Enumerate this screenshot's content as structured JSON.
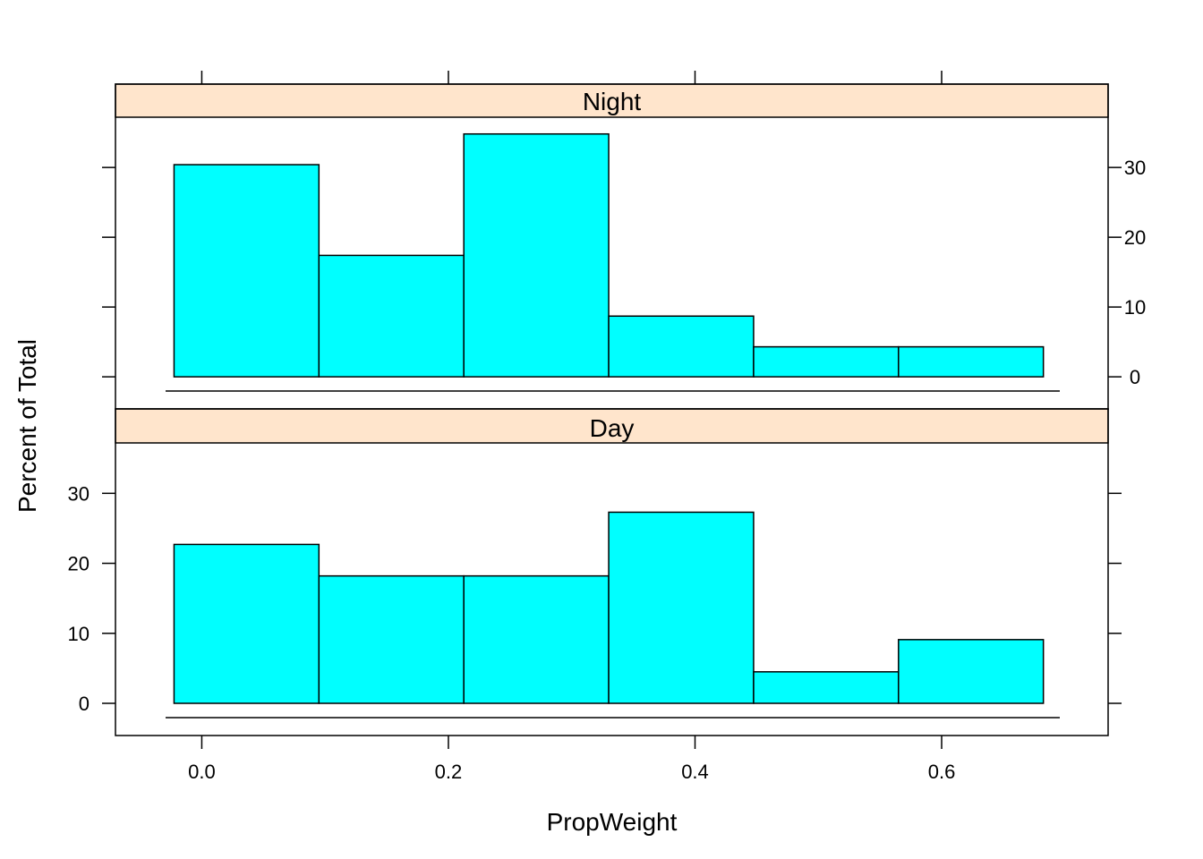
{
  "chart_data": {
    "type": "bar",
    "subtype": "histogram-trellis",
    "xlabel": "PropWeight",
    "ylabel": "Percent of Total",
    "xlim": [
      -0.07,
      0.735
    ],
    "ylim": [
      -4.6,
      37.2
    ],
    "x_ticks": [
      0.0,
      0.2,
      0.4,
      0.6
    ],
    "x_tick_labels": [
      "0.0",
      "0.2",
      "0.4",
      "0.6"
    ],
    "y_ticks": [
      0,
      10,
      20,
      30
    ],
    "y_tick_labels": [
      "0",
      "10",
      "20",
      "30"
    ],
    "bin_edges": [
      -0.0225,
      0.095,
      0.2125,
      0.33,
      0.4475,
      0.565,
      0.6825
    ],
    "bar_color": "#00FFFF",
    "strip_color": "#FFE5CC",
    "panels": [
      {
        "name": "Night",
        "values": [
          30.4,
          17.4,
          34.8,
          8.7,
          4.3,
          4.3
        ]
      },
      {
        "name": "Day",
        "values": [
          22.7,
          18.2,
          18.2,
          27.3,
          4.5,
          9.1
        ]
      }
    ]
  }
}
